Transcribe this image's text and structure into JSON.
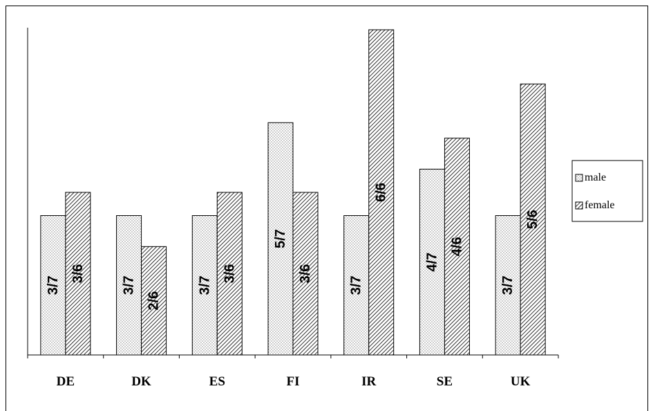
{
  "chart_data": {
    "type": "bar",
    "categories": [
      "DE",
      "DK",
      "ES",
      "FI",
      "IR",
      "SE",
      "UK"
    ],
    "series": [
      {
        "name": "male",
        "values": [
          0.4286,
          0.4286,
          0.4286,
          0.7143,
          0.4286,
          0.5714,
          0.4286
        ],
        "labels": [
          "3/7",
          "3/7",
          "3/7",
          "5/7",
          "3/7",
          "4/7",
          "3/7"
        ],
        "pattern": "dotted"
      },
      {
        "name": "female",
        "values": [
          0.5,
          0.3333,
          0.5,
          0.5,
          1.0,
          0.6667,
          0.8333
        ],
        "labels": [
          "3/6",
          "2/6",
          "3/6",
          "3/6",
          "6/6",
          "4/6",
          "5/6"
        ],
        "pattern": "hatched"
      }
    ],
    "ylim": [
      0,
      1.0
    ],
    "grid": false,
    "legend_position": "right"
  }
}
